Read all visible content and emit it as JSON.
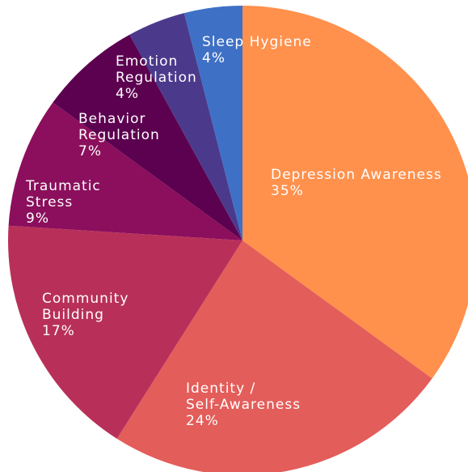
{
  "chart_data": {
    "type": "pie",
    "categories": [
      [
        "Depression Awareness"
      ],
      [
        "Identity /",
        "Self-Awareness"
      ],
      [
        "Community",
        "Building"
      ],
      [
        "Traumatic",
        "Stress"
      ],
      [
        "Behavior",
        "Regulation"
      ],
      [
        "Emotion",
        "Regulation"
      ],
      [
        "Sleep Hygiene"
      ]
    ],
    "values": [
      35,
      24,
      17,
      9,
      7,
      4,
      4
    ],
    "value_labels": [
      "35%",
      "24%",
      "17%",
      "9%",
      "7%",
      "4%",
      "4%"
    ],
    "colors": [
      "#ff914d",
      "#e35d5a",
      "#b8305a",
      "#8b0f5c",
      "#5c0050",
      "#4b3a8c",
      "#3e70c6"
    ]
  }
}
